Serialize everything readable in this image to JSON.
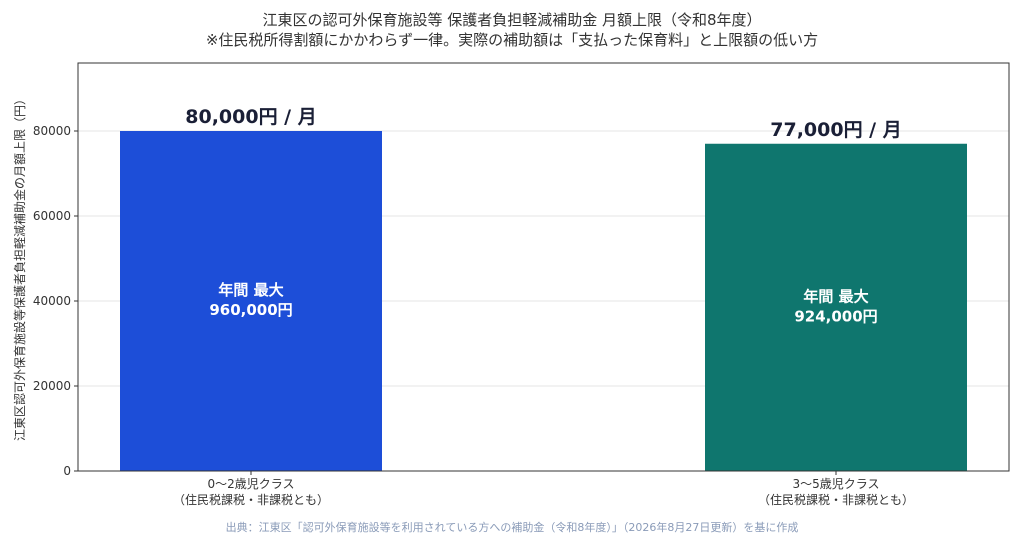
{
  "chart_data": {
    "type": "bar",
    "title": "江東区の認可外保育施設等 保護者負担軽減補助金 月額上限（令和8年度）",
    "subtitle": "※住民税所得割額にかかわらず一律。実際の補助額は「支払った保育料」と上限額の低い方",
    "ylabel": "江東区認可外保育施設等保護者負担軽減補助金の月額上限（円）",
    "xlabel": "",
    "ylim": [
      0,
      96000
    ],
    "yticks": [
      0,
      20000,
      40000,
      60000,
      80000
    ],
    "grid": true,
    "categories": [
      "0〜2歳児クラス",
      "3〜5歳児クラス"
    ],
    "category_sublabels": [
      "（住民税課税・非課税とも）",
      "（住民税課税・非課税とも）"
    ],
    "values": [
      80000,
      77000
    ],
    "colors": [
      "#1d4ed8",
      "#0f766e"
    ],
    "top_labels": [
      "80,000円 / 月",
      "77,000円 / 月"
    ],
    "inner_labels": [
      [
        "年間 最大",
        "960,000円"
      ],
      [
        "年間 最大",
        "924,000円"
      ]
    ],
    "source": "出典：江東区「認可外保育施設等を利用されている方への補助金（令和8年度）」（2026年8月27日更新）を基に作成"
  }
}
